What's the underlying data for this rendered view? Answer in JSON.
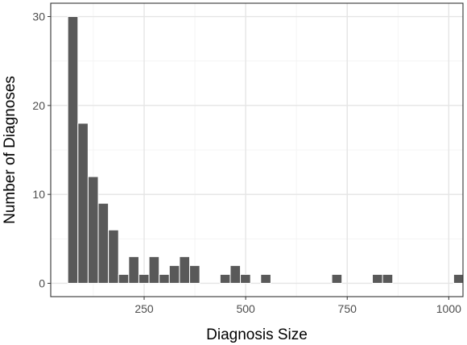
{
  "chart_data": {
    "type": "bar",
    "title": "",
    "xlabel": "Diagnosis Size",
    "ylabel": "Number of Diagnoses",
    "xlim": [
      20,
      1035
    ],
    "ylim": [
      -1.5,
      31.5
    ],
    "x_ticks": [
      250,
      500,
      750,
      1000
    ],
    "y_ticks": [
      0,
      10,
      20,
      30
    ],
    "grid": true,
    "legend": "none",
    "bar_color": "#595959",
    "bins": [
      {
        "x0": 62,
        "x1": 87,
        "count": 30
      },
      {
        "x0": 87,
        "x1": 112,
        "count": 18
      },
      {
        "x0": 112,
        "x1": 137,
        "count": 12
      },
      {
        "x0": 137,
        "x1": 162,
        "count": 9
      },
      {
        "x0": 162,
        "x1": 187,
        "count": 6
      },
      {
        "x0": 187,
        "x1": 212,
        "count": 1
      },
      {
        "x0": 212,
        "x1": 237,
        "count": 3
      },
      {
        "x0": 237,
        "x1": 262,
        "count": 1
      },
      {
        "x0": 262,
        "x1": 287,
        "count": 3
      },
      {
        "x0": 287,
        "x1": 312,
        "count": 1
      },
      {
        "x0": 312,
        "x1": 337,
        "count": 2
      },
      {
        "x0": 337,
        "x1": 362,
        "count": 3
      },
      {
        "x0": 362,
        "x1": 387,
        "count": 2
      },
      {
        "x0": 437,
        "x1": 462,
        "count": 1
      },
      {
        "x0": 462,
        "x1": 487,
        "count": 2
      },
      {
        "x0": 487,
        "x1": 512,
        "count": 1
      },
      {
        "x0": 537,
        "x1": 562,
        "count": 1
      },
      {
        "x0": 712,
        "x1": 737,
        "count": 1
      },
      {
        "x0": 812,
        "x1": 837,
        "count": 1
      },
      {
        "x0": 837,
        "x1": 862,
        "count": 1
      },
      {
        "x0": 1012,
        "x1": 1037,
        "count": 1
      }
    ]
  }
}
